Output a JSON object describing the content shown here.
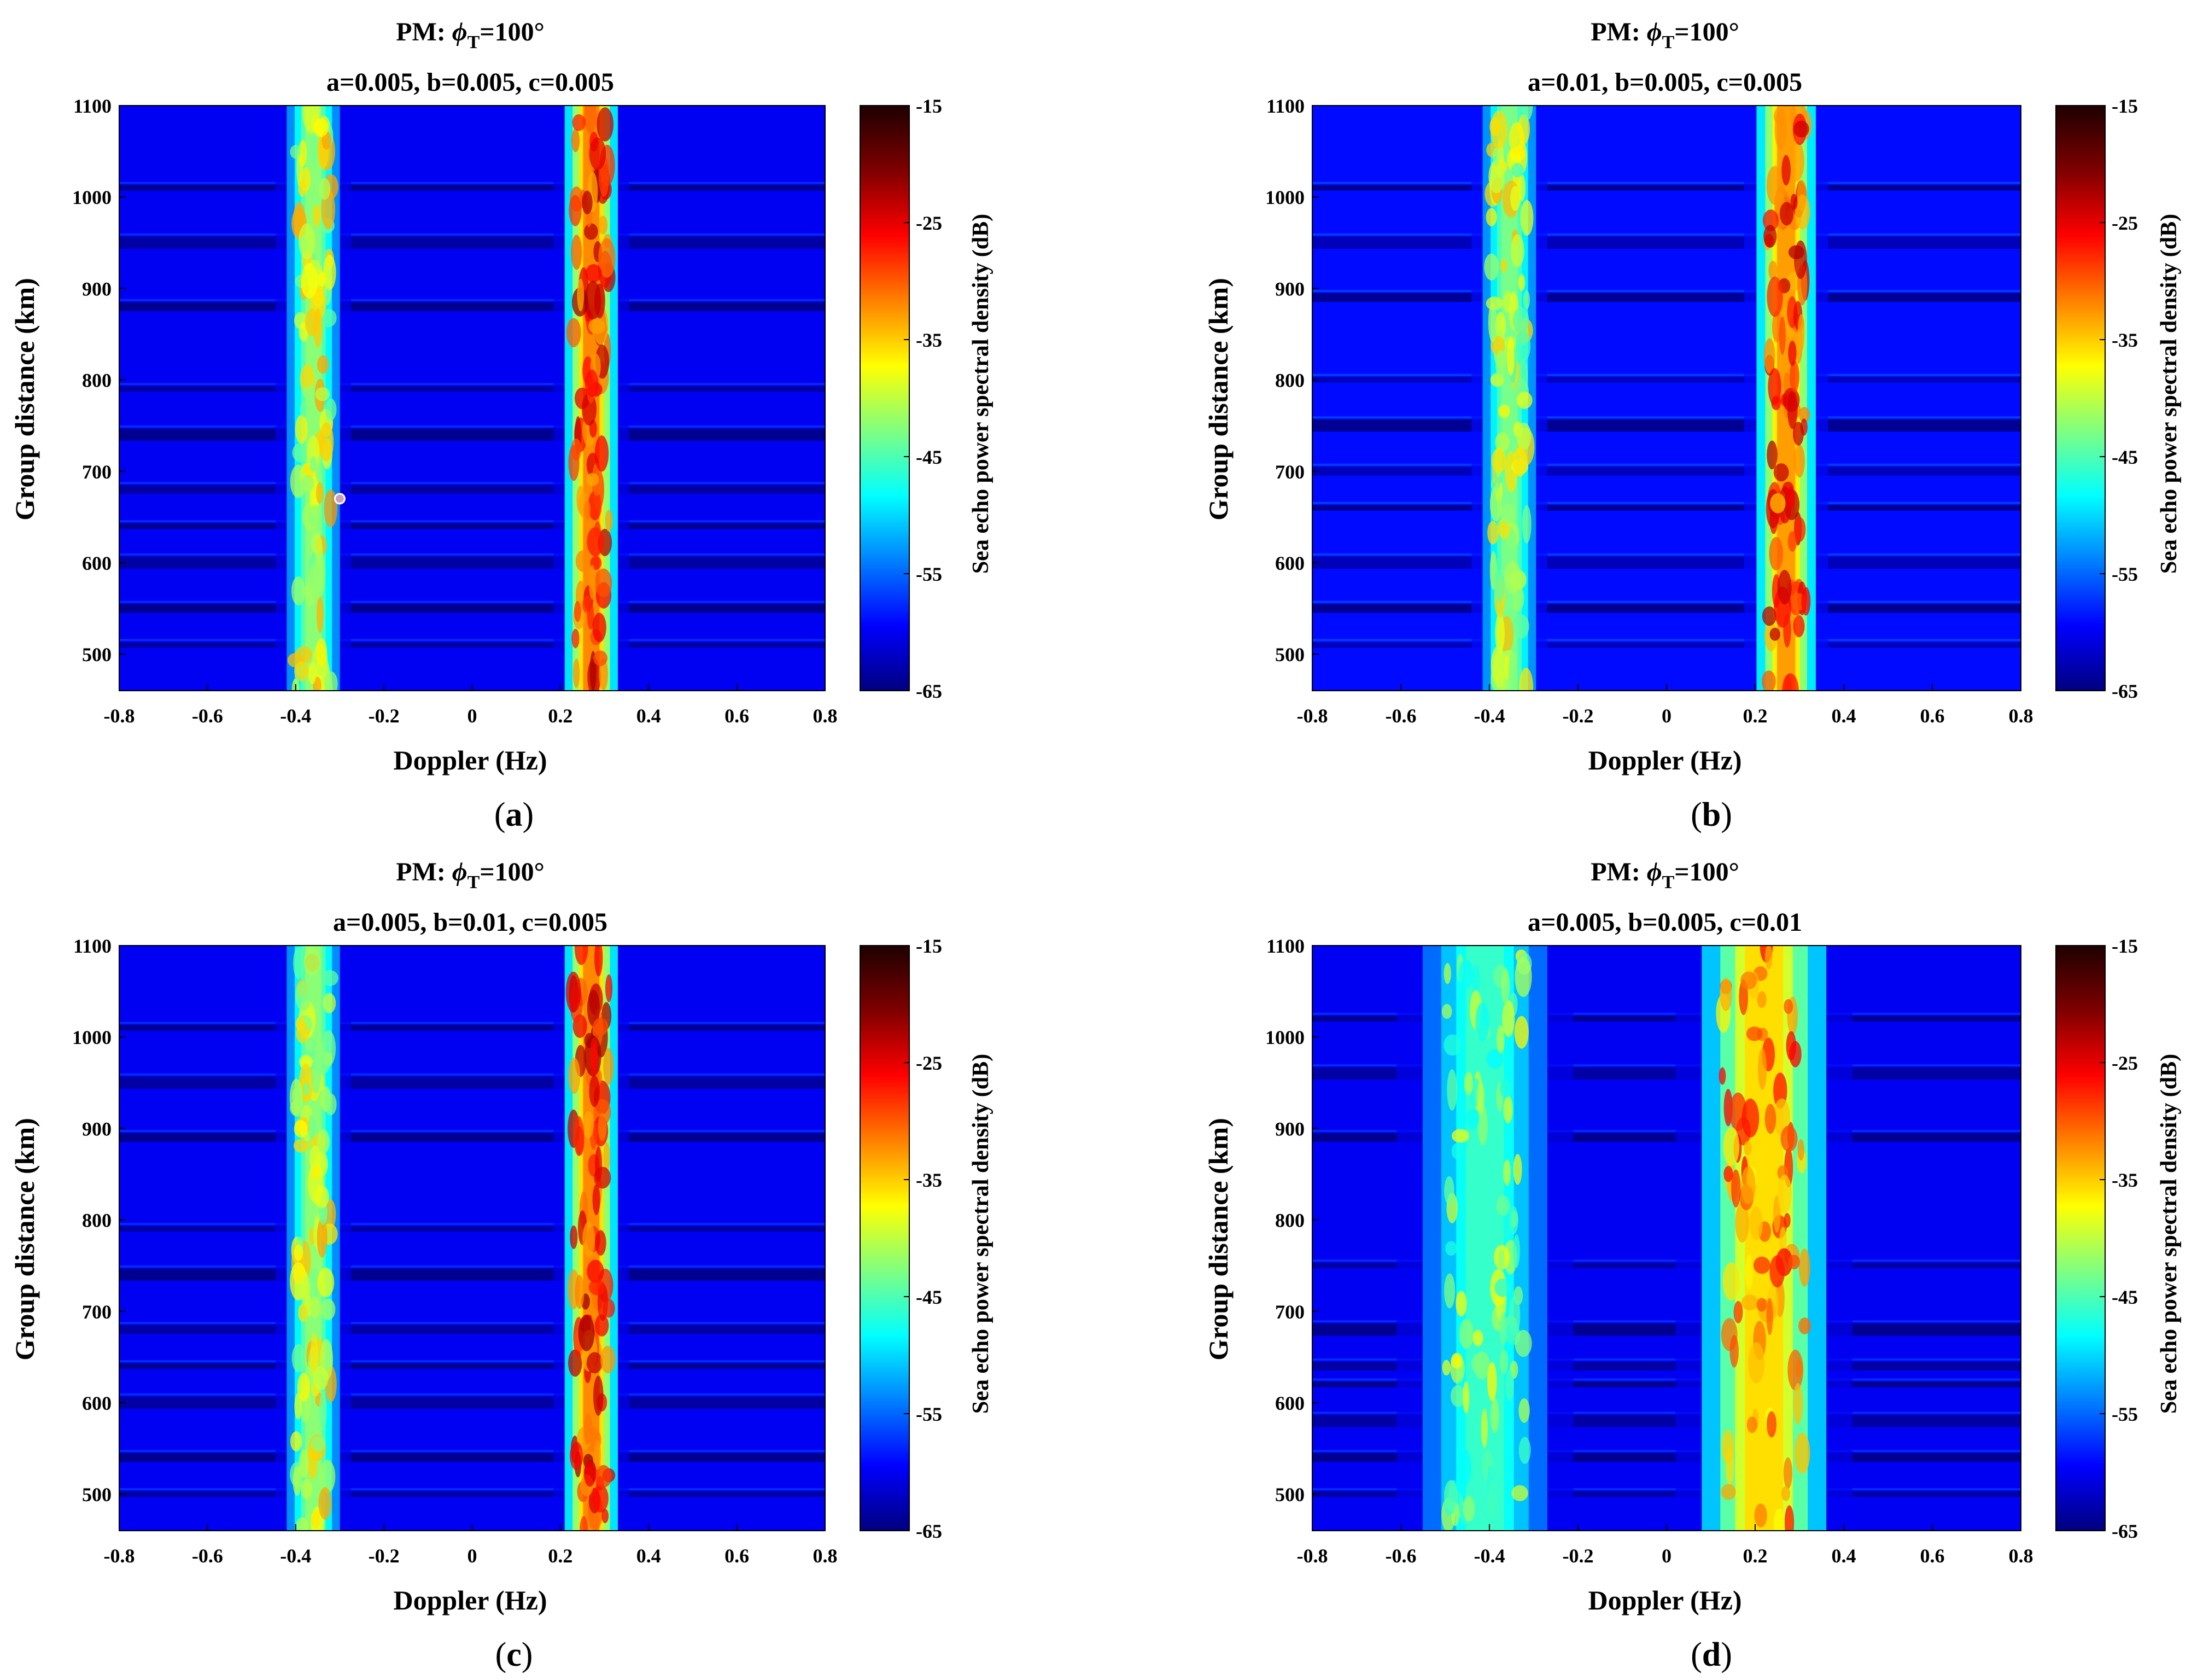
{
  "figure": {
    "caption_letters": [
      "a",
      "b",
      "c",
      "d"
    ],
    "caption_open": "(",
    "caption_close": ")"
  },
  "colormap": [
    "#00007f",
    "#0000ff",
    "#0080ff",
    "#00ffff",
    "#80ff80",
    "#ffff00",
    "#ff8000",
    "#ff0000",
    "#7f0000",
    "#1e0000"
  ],
  "chart_data": [
    {
      "type": "heatmap",
      "title": "PM: ϕT=100°",
      "title_prefix": "PM: ",
      "title_symbol": "ϕ",
      "title_subscript": "T",
      "title_suffix": "=100°",
      "subtitle": "a=0.005, b=0.005, c=0.005",
      "xlabel": "Doppler (Hz)",
      "ylabel": "Group distance (km)",
      "colorbar_label": "Sea echo power spectral density (dB)",
      "xlim": [
        -0.8,
        0.8
      ],
      "ylim": [
        460,
        1100
      ],
      "clim": [
        -65,
        -15
      ],
      "xticks": [
        -0.8,
        -0.6,
        -0.4,
        -0.2,
        0,
        0.2,
        0.4,
        0.6,
        0.8
      ],
      "xtick_labels": [
        "-0.8",
        "-0.6",
        "-0.4",
        "-0.2",
        "0",
        "0.2",
        "0.4",
        "0.6",
        "0.8"
      ],
      "yticks": [
        500,
        600,
        700,
        800,
        900,
        1000,
        1100
      ],
      "ytick_labels": [
        "500",
        "600",
        "700",
        "800",
        "900",
        "1000",
        "1100"
      ],
      "cticks": [
        -65,
        -55,
        -45,
        -35,
        -25,
        -15
      ],
      "ctick_labels": [
        "-65",
        "-55",
        "-45",
        "-35",
        "-25",
        "-15"
      ],
      "background_db": -60,
      "bragg_peaks": [
        {
          "center_hz": -0.36,
          "width_hz": 0.09,
          "peak_db": -41
        },
        {
          "center_hz": 0.27,
          "width_hz": 0.09,
          "peak_db": -30
        }
      ],
      "range_stripes_km": [
        510,
        550,
        600,
        640,
        680,
        740,
        790,
        880,
        950,
        1010
      ],
      "marker": {
        "doppler_hz": -0.3,
        "distance_km": 670
      }
    },
    {
      "type": "heatmap",
      "title": "PM: ϕT=100°",
      "title_prefix": "PM: ",
      "title_symbol": "ϕ",
      "title_subscript": "T",
      "title_suffix": "=100°",
      "subtitle": "a=0.01, b=0.005, c=0.005",
      "xlabel": "Doppler (Hz)",
      "ylabel": "Group distance (km)",
      "colorbar_label": "Sea echo power spectral density (dB)",
      "xlim": [
        -0.8,
        0.8
      ],
      "ylim": [
        460,
        1100
      ],
      "clim": [
        -65,
        -15
      ],
      "xticks": [
        -0.8,
        -0.6,
        -0.4,
        -0.2,
        0,
        0.2,
        0.4,
        0.6,
        0.8
      ],
      "xtick_labels": [
        "-0.8",
        "-0.6",
        "-0.4",
        "-0.2",
        "0",
        "0.2",
        "0.4",
        "0.6",
        "0.8"
      ],
      "yticks": [
        500,
        600,
        700,
        800,
        900,
        1000,
        1100
      ],
      "ytick_labels": [
        "500",
        "600",
        "700",
        "800",
        "900",
        "1000",
        "1100"
      ],
      "cticks": [
        -65,
        -55,
        -45,
        -35,
        -25,
        -15
      ],
      "ctick_labels": [
        "-65",
        "-55",
        "-45",
        "-35",
        "-25",
        "-15"
      ],
      "background_db": -59,
      "bragg_peaks": [
        {
          "center_hz": -0.355,
          "width_hz": 0.09,
          "peak_db": -42
        },
        {
          "center_hz": 0.27,
          "width_hz": 0.1,
          "peak_db": -31
        }
      ],
      "range_stripes_km": [
        510,
        550,
        600,
        660,
        700,
        750,
        800,
        890,
        950,
        1010
      ]
    },
    {
      "type": "heatmap",
      "title": "PM: ϕT=100°",
      "title_prefix": "PM: ",
      "title_symbol": "ϕ",
      "title_subscript": "T",
      "title_suffix": "=100°",
      "subtitle": "a=0.005, b=0.01, c=0.005",
      "xlabel": "Doppler (Hz)",
      "ylabel": "Group distance (km)",
      "colorbar_label": "Sea echo power spectral density (dB)",
      "xlim": [
        -0.8,
        0.8
      ],
      "ylim": [
        460,
        1100
      ],
      "clim": [
        -65,
        -15
      ],
      "xticks": [
        -0.8,
        -0.6,
        -0.4,
        -0.2,
        0,
        0.2,
        0.4,
        0.6,
        0.8
      ],
      "xtick_labels": [
        "-0.8",
        "-0.6",
        "-0.4",
        "-0.2",
        "0",
        "0.2",
        "0.4",
        "0.6",
        "0.8"
      ],
      "yticks": [
        500,
        600,
        700,
        800,
        900,
        1000,
        1100
      ],
      "ytick_labels": [
        "500",
        "600",
        "700",
        "800",
        "900",
        "1000",
        "1100"
      ],
      "cticks": [
        -65,
        -55,
        -45,
        -35,
        -25,
        -15
      ],
      "ctick_labels": [
        "-65",
        "-55",
        "-45",
        "-35",
        "-25",
        "-15"
      ],
      "background_db": -60,
      "bragg_peaks": [
        {
          "center_hz": -0.36,
          "width_hz": 0.09,
          "peak_db": -41
        },
        {
          "center_hz": 0.27,
          "width_hz": 0.09,
          "peak_db": -30
        }
      ],
      "range_stripes_km": [
        500,
        540,
        600,
        640,
        680,
        740,
        790,
        890,
        950,
        1010
      ]
    },
    {
      "type": "heatmap",
      "title": "PM: ϕT=100°",
      "title_prefix": "PM: ",
      "title_symbol": "ϕ",
      "title_subscript": "T",
      "title_suffix": "=100°",
      "subtitle": "a=0.005, b=0.005, c=0.01",
      "xlabel": "Doppler (Hz)",
      "ylabel": "Group distance (km)",
      "colorbar_label": "Sea echo power spectral density (dB)",
      "xlim": [
        -0.8,
        0.8
      ],
      "ylim": [
        460,
        1100
      ],
      "clim": [
        -65,
        -15
      ],
      "xticks": [
        -0.8,
        -0.6,
        -0.4,
        -0.2,
        0,
        0.2,
        0.4,
        0.6,
        0.8
      ],
      "xtick_labels": [
        "-0.8",
        "-0.6",
        "-0.4",
        "-0.2",
        "0",
        "0.2",
        "0.4",
        "0.6",
        "0.8"
      ],
      "yticks": [
        500,
        600,
        700,
        800,
        900,
        1000,
        1100
      ],
      "ytick_labels": [
        "500",
        "600",
        "700",
        "800",
        "900",
        "1000",
        "1100"
      ],
      "cticks": [
        -65,
        -55,
        -45,
        -35,
        -25,
        -15
      ],
      "ctick_labels": [
        "-65",
        "-55",
        "-45",
        "-35",
        "-25",
        "-15"
      ],
      "background_db": -60,
      "bragg_peaks": [
        {
          "center_hz": -0.41,
          "width_hz": 0.21,
          "peak_db": -45
        },
        {
          "center_hz": 0.22,
          "width_hz": 0.21,
          "peak_db": -34
        }
      ],
      "range_stripes_km": [
        500,
        540,
        580,
        620,
        640,
        680,
        750,
        890,
        960,
        1020
      ]
    }
  ]
}
